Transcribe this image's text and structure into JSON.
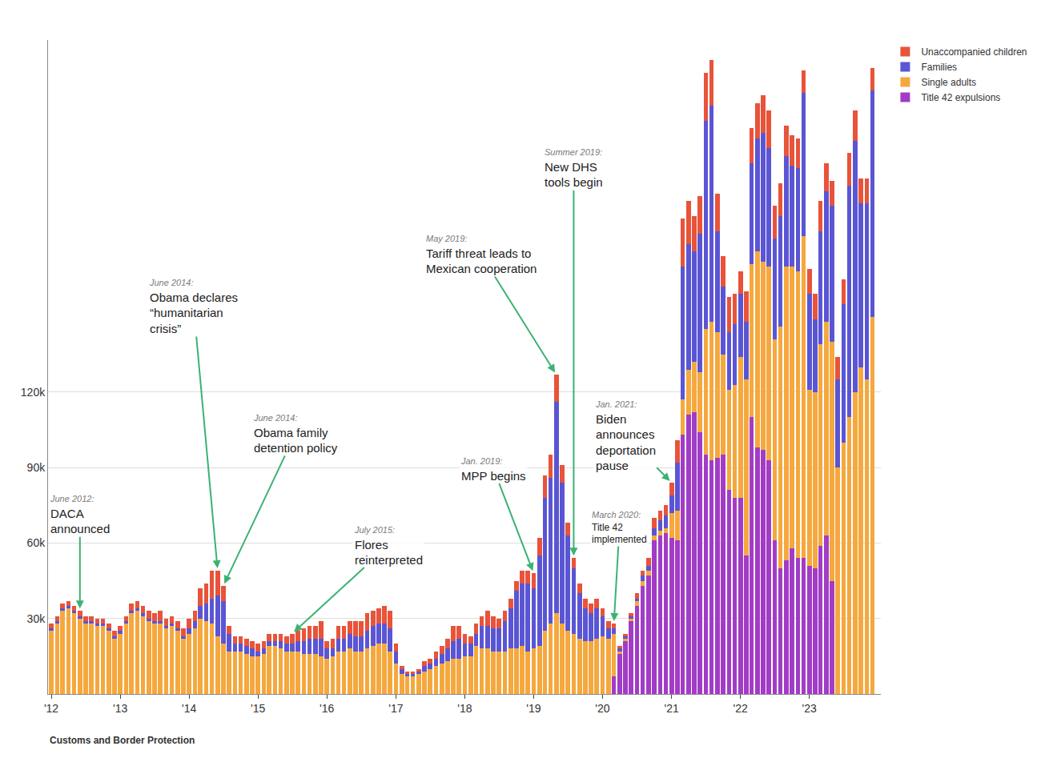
{
  "chart_data": {
    "type": "bar",
    "stacked": true,
    "grid": true,
    "legend": "right",
    "source": "Customs and Border Protection",
    "x": [
      "2012-01",
      "2012-02",
      "2012-03",
      "2012-04",
      "2012-05",
      "2012-06",
      "2012-07",
      "2012-08",
      "2012-09",
      "2012-10",
      "2012-11",
      "2012-12",
      "2013-01",
      "2013-02",
      "2013-03",
      "2013-04",
      "2013-05",
      "2013-06",
      "2013-07",
      "2013-08",
      "2013-09",
      "2013-10",
      "2013-11",
      "2013-12",
      "2014-01",
      "2014-02",
      "2014-03",
      "2014-04",
      "2014-05",
      "2014-06",
      "2014-07",
      "2014-08",
      "2014-09",
      "2014-10",
      "2014-11",
      "2014-12",
      "2015-01",
      "2015-02",
      "2015-03",
      "2015-04",
      "2015-05",
      "2015-06",
      "2015-07",
      "2015-08",
      "2015-09",
      "2015-10",
      "2015-11",
      "2015-12",
      "2016-01",
      "2016-02",
      "2016-03",
      "2016-04",
      "2016-05",
      "2016-06",
      "2016-07",
      "2016-08",
      "2016-09",
      "2016-10",
      "2016-11",
      "2016-12",
      "2017-01",
      "2017-02",
      "2017-03",
      "2017-04",
      "2017-05",
      "2017-06",
      "2017-07",
      "2017-08",
      "2017-09",
      "2017-10",
      "2017-11",
      "2017-12",
      "2018-01",
      "2018-02",
      "2018-03",
      "2018-04",
      "2018-05",
      "2018-06",
      "2018-07",
      "2018-08",
      "2018-09",
      "2018-10",
      "2018-11",
      "2018-12",
      "2019-01",
      "2019-02",
      "2019-03",
      "2019-04",
      "2019-05",
      "2019-06",
      "2019-07",
      "2019-08",
      "2019-09",
      "2019-10",
      "2019-11",
      "2019-12",
      "2020-01",
      "2020-02",
      "2020-03",
      "2020-04",
      "2020-05",
      "2020-06",
      "2020-07",
      "2020-08",
      "2020-09",
      "2020-10",
      "2020-11",
      "2020-12",
      "2021-01",
      "2021-02",
      "2021-03",
      "2021-04",
      "2021-05",
      "2021-06",
      "2021-07",
      "2021-08",
      "2021-09",
      "2021-10",
      "2021-11",
      "2021-12",
      "2022-01",
      "2022-02",
      "2022-03",
      "2022-04",
      "2022-05",
      "2022-06",
      "2022-07",
      "2022-08",
      "2022-09",
      "2022-10",
      "2022-11",
      "2022-12",
      "2023-01",
      "2023-02",
      "2023-03",
      "2023-04",
      "2023-05",
      "2023-06",
      "2023-07",
      "2023-08",
      "2023-09",
      "2023-10",
      "2023-11",
      "2023-12"
    ],
    "xlim": [
      "2011-12-15",
      "2024-01-15"
    ],
    "xticks": [
      {
        "value": "2012-01",
        "label": "'12"
      },
      {
        "value": "2013-01",
        "label": "'13"
      },
      {
        "value": "2014-01",
        "label": "'14"
      },
      {
        "value": "2015-01",
        "label": "'15"
      },
      {
        "value": "2016-01",
        "label": "'16"
      },
      {
        "value": "2017-01",
        "label": "'17"
      },
      {
        "value": "2018-01",
        "label": "'18"
      },
      {
        "value": "2019-01",
        "label": "'19"
      },
      {
        "value": "2020-01",
        "label": "'20"
      },
      {
        "value": "2021-01",
        "label": "'21"
      },
      {
        "value": "2022-01",
        "label": "'22"
      },
      {
        "value": "2023-01",
        "label": "'23"
      }
    ],
    "ylim": [
      0,
      260000
    ],
    "yticks": [
      {
        "value": 30000,
        "label": "30k"
      },
      {
        "value": 60000,
        "label": "60k"
      },
      {
        "value": 90000,
        "label": "90k"
      },
      {
        "value": 120000,
        "label": "120k"
      }
    ],
    "series": [
      {
        "name": "Title 42 expulsions",
        "color": "#a23cc6",
        "values": [
          0,
          0,
          0,
          0,
          0,
          0,
          0,
          0,
          0,
          0,
          0,
          0,
          0,
          0,
          0,
          0,
          0,
          0,
          0,
          0,
          0,
          0,
          0,
          0,
          0,
          0,
          0,
          0,
          0,
          0,
          0,
          0,
          0,
          0,
          0,
          0,
          0,
          0,
          0,
          0,
          0,
          0,
          0,
          0,
          0,
          0,
          0,
          0,
          0,
          0,
          0,
          0,
          0,
          0,
          0,
          0,
          0,
          0,
          0,
          0,
          0,
          0,
          0,
          0,
          0,
          0,
          0,
          0,
          0,
          0,
          0,
          0,
          0,
          0,
          0,
          0,
          0,
          0,
          0,
          0,
          0,
          0,
          0,
          0,
          0,
          0,
          0,
          0,
          0,
          0,
          0,
          0,
          0,
          0,
          0,
          0,
          0,
          0,
          7000,
          16000,
          21000,
          29000,
          35000,
          43000,
          47000,
          61000,
          63000,
          64000,
          62000,
          61000,
          103000,
          111000,
          112000,
          104000,
          95000,
          93000,
          94000,
          95000,
          81000,
          78000,
          78000,
          55000,
          110000,
          98000,
          97000,
          93000,
          61000,
          50000,
          53000,
          58000,
          54000,
          54000,
          51000,
          50000,
          59000,
          63000,
          45000,
          0,
          0,
          0,
          0,
          0,
          0,
          0
        ]
      },
      {
        "name": "Single adults",
        "color": "#f5a83e",
        "values": [
          25000,
          28000,
          33000,
          34000,
          32000,
          30000,
          28000,
          28000,
          27000,
          27000,
          25000,
          22000,
          24000,
          28000,
          32000,
          33000,
          31000,
          29000,
          28000,
          28000,
          26000,
          27000,
          25000,
          22000,
          24000,
          26000,
          30000,
          29000,
          28000,
          23000,
          20000,
          17000,
          17000,
          17000,
          16000,
          15000,
          15000,
          16000,
          19000,
          19000,
          18000,
          17000,
          17000,
          17000,
          16000,
          16000,
          16000,
          15000,
          14000,
          15000,
          17000,
          17000,
          18000,
          17000,
          17000,
          18000,
          19000,
          20000,
          20000,
          17000,
          12000,
          8000,
          7000,
          7000,
          8000,
          9000,
          10000,
          11000,
          12000,
          13000,
          14000,
          14000,
          15000,
          15000,
          19000,
          18000,
          18000,
          17000,
          17000,
          17000,
          18000,
          18000,
          19000,
          17000,
          18000,
          19000,
          25000,
          28000,
          32000,
          28000,
          25000,
          24000,
          22000,
          21000,
          21000,
          22000,
          23000,
          22000,
          17000,
          1000,
          1000,
          1000,
          2000,
          2000,
          2000,
          2000,
          2000,
          2000,
          10000,
          12000,
          14000,
          18000,
          20000,
          24000,
          50000,
          55000,
          50000,
          40000,
          40000,
          45000,
          56000,
          70000,
          61000,
          78000,
          75000,
          77000,
          80000,
          96000,
          117000,
          112000,
          114000,
          128000,
          70000,
          70000,
          80000,
          85000,
          95000,
          90000,
          100000,
          110000,
          120000,
          130000,
          125000,
          150000
        ]
      },
      {
        "name": "Families",
        "color": "#5a55d4",
        "values": [
          1000,
          1000,
          1000,
          1000,
          1000,
          1000,
          1000,
          1000,
          1000,
          1000,
          1000,
          1000,
          1000,
          1000,
          1000,
          1000,
          1000,
          1000,
          1000,
          1000,
          1000,
          1000,
          1000,
          1000,
          2000,
          3000,
          5000,
          7000,
          10000,
          16000,
          17000,
          7000,
          3000,
          3000,
          3000,
          3000,
          2000,
          2000,
          2000,
          2000,
          3000,
          3000,
          3000,
          4000,
          5000,
          6000,
          6000,
          7000,
          4000,
          3000,
          5000,
          5000,
          6000,
          6000,
          6000,
          7000,
          8000,
          8000,
          8000,
          9000,
          5000,
          2000,
          1000,
          1000,
          1000,
          2000,
          2000,
          3000,
          4000,
          5000,
          7000,
          8000,
          5000,
          5000,
          5000,
          9000,
          9000,
          9000,
          9000,
          12000,
          16000,
          23000,
          25000,
          27000,
          24000,
          36000,
          53000,
          58000,
          84000,
          56000,
          38000,
          26000,
          18000,
          13000,
          11000,
          12000,
          8000,
          4000,
          2000,
          1000,
          1000,
          1000,
          1000,
          2000,
          2000,
          3000,
          4000,
          5000,
          7000,
          19000,
          53000,
          50000,
          44000,
          55000,
          83000,
          86000,
          40000,
          27000,
          23000,
          24000,
          25000,
          23000,
          40000,
          45000,
          51000,
          47000,
          40000,
          44000,
          44000,
          40000,
          41000,
          57000,
          38000,
          29000,
          45000,
          52000,
          54000,
          35000,
          55000,
          92000,
          100000,
          65000,
          70000,
          90000
        ]
      },
      {
        "name": "Unaccompanied children",
        "color": "#e8533a",
        "values": [
          2000,
          2000,
          2000,
          2000,
          2000,
          2000,
          2000,
          2000,
          2000,
          2000,
          2000,
          2000,
          2000,
          2000,
          3000,
          3000,
          3000,
          3000,
          3000,
          4000,
          3000,
          3000,
          3000,
          3000,
          4000,
          4000,
          7000,
          8000,
          11000,
          10000,
          6000,
          3000,
          3000,
          3000,
          3000,
          3000,
          3000,
          3000,
          3000,
          3000,
          3000,
          3000,
          4000,
          4000,
          5000,
          5000,
          5000,
          7000,
          3000,
          4000,
          5000,
          5000,
          5000,
          6000,
          6000,
          7000,
          6000,
          6000,
          7000,
          7000,
          3000,
          1000,
          1000,
          1000,
          1000,
          2000,
          2000,
          3000,
          3000,
          4000,
          6000,
          5000,
          4000,
          3000,
          4000,
          4000,
          6000,
          5000,
          4000,
          4000,
          4000,
          4000,
          5000,
          5000,
          6000,
          7000,
          9000,
          9000,
          11000,
          7000,
          5000,
          4000,
          4000,
          4000,
          4000,
          4000,
          3000,
          3000,
          2000,
          1000,
          1000,
          1000,
          2000,
          2000,
          3000,
          4000,
          4000,
          4000,
          5000,
          9000,
          19000,
          17000,
          14000,
          15000,
          19000,
          18000,
          15000,
          12000,
          14000,
          12000,
          9000,
          12000,
          14000,
          14000,
          15000,
          15000,
          13000,
          13000,
          12000,
          12000,
          12000,
          9000,
          10000,
          10000,
          12000,
          11000,
          10000,
          9000,
          10000,
          13000,
          12000,
          10000,
          10000,
          9000
        ]
      }
    ],
    "annotations": [
      {
        "x": "2012-06",
        "date": "June 2012:",
        "text": "DACA announced"
      },
      {
        "x": "2014-06",
        "date": "June 2014:",
        "text": "Obama declares “humanitarian crisis”"
      },
      {
        "x": "2014-07",
        "date": "June 2014:",
        "text": "Obama family detention policy"
      },
      {
        "x": "2015-07",
        "date": "July 2015:",
        "text": "Flores reinterpreted"
      },
      {
        "x": "2019-01",
        "date": "Jan. 2019:",
        "text": "MPP begins"
      },
      {
        "x": "2019-05",
        "date": "May 2019:",
        "text": "Tariff threat leads to Mexican cooperation"
      },
      {
        "x": "2019-08",
        "date": "Summer 2019:",
        "text": "New DHS tools begin"
      },
      {
        "x": "2020-03",
        "date": "March 2020:",
        "text": "Title 42 implemented"
      },
      {
        "x": "2021-01",
        "date": "Jan. 2021:",
        "text": "Biden announces deportation pause"
      }
    ]
  }
}
